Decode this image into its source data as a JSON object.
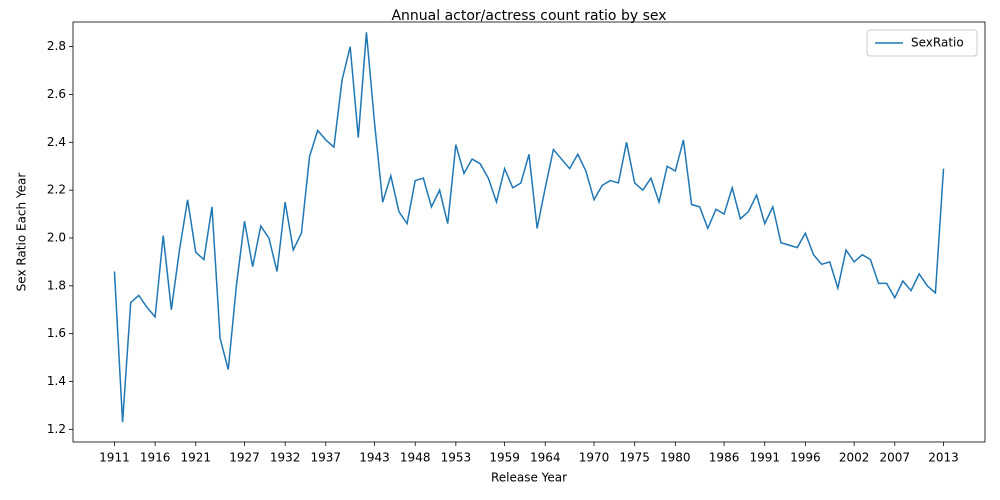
{
  "chart_data": {
    "type": "line",
    "title": "Annual actor/actress count ratio by sex",
    "x_label": "Release Year",
    "y_label": "Sex Ratio Each Year",
    "x": [
      1911,
      1912,
      1913,
      1914,
      1915,
      1916,
      1917,
      1918,
      1919,
      1920,
      1921,
      1922,
      1923,
      1924,
      1925,
      1926,
      1927,
      1928,
      1929,
      1930,
      1931,
      1932,
      1933,
      1934,
      1935,
      1936,
      1937,
      1938,
      1939,
      1940,
      1941,
      1942,
      1943,
      1944,
      1945,
      1946,
      1947,
      1948,
      1949,
      1950,
      1951,
      1952,
      1953,
      1954,
      1955,
      1956,
      1957,
      1958,
      1959,
      1960,
      1961,
      1962,
      1963,
      1964,
      1965,
      1966,
      1967,
      1968,
      1969,
      1970,
      1971,
      1972,
      1973,
      1974,
      1975,
      1976,
      1977,
      1978,
      1979,
      1980,
      1981,
      1982,
      1983,
      1984,
      1985,
      1986,
      1987,
      1988,
      1989,
      1990,
      1991,
      1992,
      1993,
      1994,
      1995,
      1996,
      1997,
      1998,
      1999,
      2000,
      2001,
      2002,
      2003,
      2004,
      2005,
      2006,
      2007,
      2008,
      2009,
      2010,
      2011,
      2012,
      2013
    ],
    "series": [
      {
        "name": "SexRatio",
        "color": "#1f77b4",
        "values": [
          1.86,
          1.23,
          1.73,
          1.76,
          1.71,
          1.67,
          2.01,
          1.7,
          1.95,
          2.16,
          1.94,
          1.91,
          2.13,
          1.58,
          1.45,
          1.8,
          2.07,
          1.88,
          2.05,
          2.0,
          1.86,
          2.15,
          1.95,
          2.02,
          2.34,
          2.45,
          2.41,
          2.38,
          2.66,
          2.8,
          2.42,
          2.86,
          2.48,
          2.15,
          2.26,
          2.11,
          2.06,
          2.24,
          2.25,
          2.13,
          2.2,
          2.06,
          2.39,
          2.27,
          2.33,
          2.31,
          2.25,
          2.15,
          2.29,
          2.21,
          2.23,
          2.35,
          2.04,
          2.21,
          2.37,
          2.33,
          2.29,
          2.35,
          2.28,
          2.16,
          2.22,
          2.24,
          2.23,
          2.4,
          2.23,
          2.2,
          2.25,
          2.15,
          2.3,
          2.28,
          2.41,
          2.14,
          2.13,
          2.04,
          2.12,
          2.1,
          2.21,
          2.08,
          2.11,
          2.18,
          2.06,
          2.13,
          1.98,
          1.97,
          1.96,
          2.02,
          1.93,
          1.89,
          1.9,
          1.79,
          1.95,
          1.9,
          1.93,
          1.91,
          1.81,
          1.81,
          1.75,
          1.82,
          1.78,
          1.85,
          1.8,
          1.77,
          2.29
        ]
      }
    ],
    "xlim": [
      1905.9,
      2018.1
    ],
    "ylim": [
      1.147,
      2.903
    ],
    "xticks": [
      1911,
      1916,
      1921,
      1927,
      1932,
      1937,
      1943,
      1948,
      1953,
      1959,
      1964,
      1970,
      1975,
      1980,
      1986,
      1991,
      1996,
      2002,
      2007,
      2013
    ],
    "yticks": [
      1.2,
      1.4,
      1.6,
      1.8,
      2.0,
      2.2,
      2.4,
      2.6,
      2.8
    ],
    "legend": "upper right",
    "grid": false
  }
}
